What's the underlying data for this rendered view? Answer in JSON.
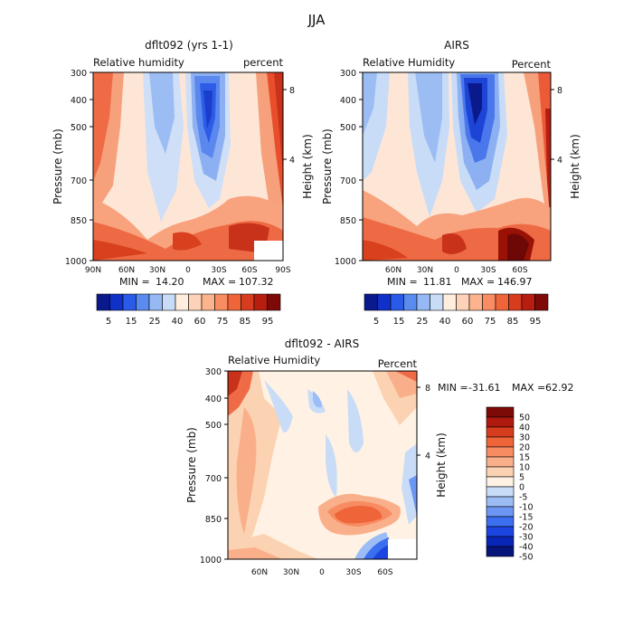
{
  "figure": {
    "title": "JJA"
  },
  "colors": {
    "abs_scale": [
      "#0a1a8c",
      "#1030c8",
      "#2a5ae8",
      "#5a8cf0",
      "#96b8f4",
      "#c8dcf8",
      "#ffeedd",
      "#fdd2b8",
      "#fbb48e",
      "#f98c62",
      "#f0643a",
      "#d83c1e",
      "#b81e10",
      "#7e0a08"
    ],
    "diff_scale": [
      "#06157a",
      "#0a26b8",
      "#1c44e0",
      "#3c6ef0",
      "#6c96f4",
      "#9cbcf6",
      "#c8dcf8",
      "#fff2e4",
      "#fbd2b2",
      "#f9b08a",
      "#f78c62",
      "#f0643a",
      "#d83c1e",
      "#b01a0e",
      "#7e0a08"
    ]
  },
  "chart_data": [
    {
      "type": "heatmap",
      "title": "dflt092 (yrs 1-1)",
      "left_label": "Relative humidity",
      "right_label": "percent",
      "xlabel": "",
      "ylabel": "Pressure (mb)",
      "y2label": "Height (km)",
      "x_ticks": [
        "90N",
        "60N",
        "30N",
        "0",
        "30S",
        "60S",
        "90S"
      ],
      "y_ticks": [
        "300",
        "400",
        "500",
        "700",
        "850",
        "1000"
      ],
      "y2_ticks": [
        "8",
        "4"
      ],
      "stats": {
        "min_label": "MIN =",
        "min": "14.20",
        "max_label": "MAX =",
        "max": "107.32"
      },
      "colorbar_labels": [
        "5",
        "15",
        "25",
        "40",
        "60",
        "75",
        "85",
        "95"
      ],
      "ylim": [
        1000,
        300
      ]
    },
    {
      "type": "heatmap",
      "title": "AIRS",
      "left_label": "Relative Humidity",
      "right_label": "Percent",
      "xlabel": "",
      "ylabel": "Pressure (mb)",
      "y2label": "Height (km)",
      "x_ticks": [
        "60N",
        "30N",
        "0",
        "30S",
        "60S"
      ],
      "y_ticks": [
        "300",
        "400",
        "500",
        "700",
        "850",
        "1000"
      ],
      "y2_ticks": [
        "8",
        "4"
      ],
      "stats": {
        "min_label": "MIN =",
        "min": "11.81",
        "max_label": "MAX =",
        "max": "146.97"
      },
      "colorbar_labels": [
        "5",
        "15",
        "25",
        "40",
        "60",
        "75",
        "85",
        "95"
      ],
      "ylim": [
        1000,
        300
      ]
    },
    {
      "type": "heatmap",
      "title": "dflt092 - AIRS",
      "left_label": "Relative Humidity",
      "right_label": "Percent",
      "xlabel": "",
      "ylabel": "Pressure (mb)",
      "y2label": "Height (km)",
      "x_ticks": [
        "60N",
        "30N",
        "0",
        "30S",
        "60S"
      ],
      "y_ticks": [
        "300",
        "400",
        "500",
        "700",
        "850",
        "1000"
      ],
      "y2_ticks": [
        "8",
        "4"
      ],
      "stats": {
        "min_label": "MIN =",
        "min": "-31.61",
        "max_label": "MAX =",
        "max": "62.92"
      },
      "colorbar_labels": [
        "50",
        "40",
        "30",
        "20",
        "15",
        "10",
        "5",
        "0",
        "-5",
        "-10",
        "-15",
        "-20",
        "-30",
        "-40",
        "-50"
      ],
      "ylim": [
        1000,
        300
      ]
    }
  ]
}
